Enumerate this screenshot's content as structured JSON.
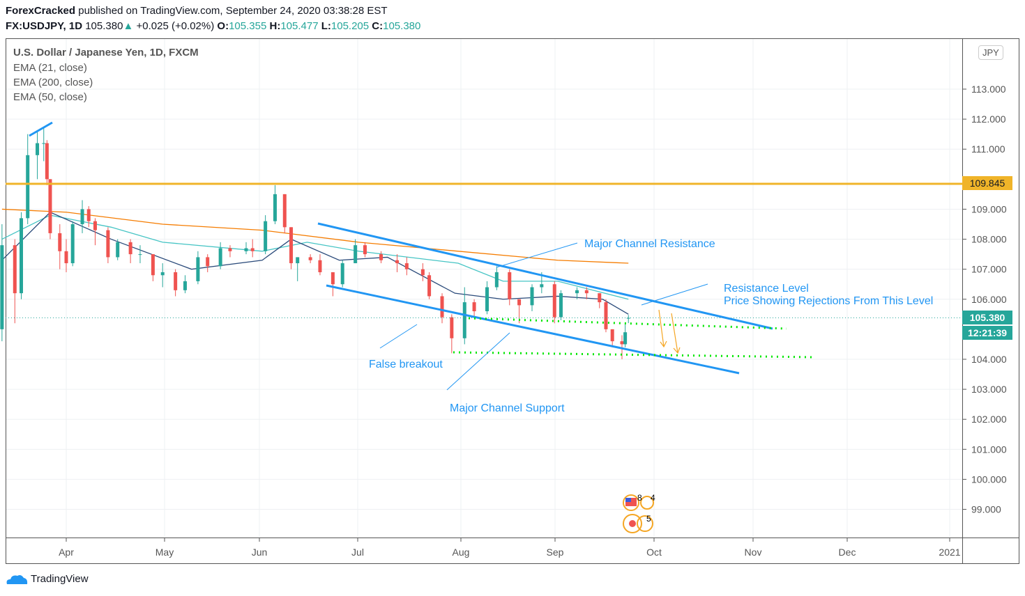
{
  "header": {
    "author": "ForexCracked",
    "published": "published on TradingView.com, September 24, 2020 03:38:28 EST",
    "symbol": "FX:USDJPY, 1D",
    "last": "105.380",
    "change": "+0.025 (+0.02%)",
    "o_label": "O:",
    "o": "105.355",
    "h_label": "H:",
    "h": "105.477",
    "l_label": "L:",
    "l": "105.205",
    "c_label": "C:",
    "c": "105.380"
  },
  "legend": {
    "title": "U.S. Dollar / Japanese Yen, 1D, FXCM",
    "ema1": "EMA (21, close)",
    "ema2": "EMA (200, close)",
    "ema3": "EMA (50, close)"
  },
  "currency_button": "JPY",
  "price_tags": {
    "resistance": "109.845",
    "last": "105.380",
    "countdown": "12:21:39"
  },
  "annotations": {
    "resistance": "Major Channel Resistance",
    "level1": "Resistance Level",
    "level2": "Price Showing  Rejections From This Level",
    "false_breakout": "False breakout",
    "support": "Major Channel Support"
  },
  "event_labels": [
    "8",
    "4",
    "5"
  ],
  "footer": {
    "brand": "TradingView"
  },
  "colors": {
    "up": "#26a69a",
    "down": "#ef5350",
    "ema21": "#2a4a7a",
    "ema50": "#45c4c4",
    "ema200": "#f57c00",
    "hline": "#f0b429",
    "trend": "#2196f3",
    "dots": "#00e600"
  },
  "chart_data": {
    "type": "candlestick",
    "y_ticks": [
      "113.000",
      "112.000",
      "111.000",
      "109.000",
      "108.000",
      "107.000",
      "106.000",
      "104.000",
      "103.000",
      "102.000",
      "101.000",
      "100.000",
      "99.000"
    ],
    "x_ticks": [
      "Apr",
      "May",
      "Jun",
      "Jul",
      "Aug",
      "Sep",
      "Oct",
      "Nov",
      "Dec",
      "2021"
    ],
    "ylim": [
      98.2,
      113.6
    ],
    "horizontal_line": 109.845,
    "candles": [
      [
        "2020-03-12",
        105.0,
        108.5,
        104.6,
        107.8
      ],
      [
        "2020-03-16",
        107.8,
        108.0,
        105.2,
        106.2
      ],
      [
        "2020-03-18",
        106.2,
        108.9,
        106.0,
        108.7
      ],
      [
        "2020-03-20",
        108.7,
        111.5,
        108.5,
        110.8
      ],
      [
        "2020-03-23",
        110.8,
        111.6,
        110.0,
        111.2
      ],
      [
        "2020-03-25",
        111.2,
        111.7,
        110.6,
        111.2
      ],
      [
        "2020-03-26",
        111.2,
        111.3,
        109.8,
        110.0
      ],
      [
        "2020-03-27",
        110.0,
        110.0,
        108.0,
        108.2
      ],
      [
        "2020-03-30",
        108.2,
        108.5,
        107.0,
        107.6
      ],
      [
        "2020-04-01",
        107.6,
        108.0,
        106.9,
        107.2
      ],
      [
        "2020-04-03",
        107.2,
        108.6,
        107.1,
        108.5
      ],
      [
        "2020-04-06",
        108.5,
        109.3,
        108.2,
        109.0
      ],
      [
        "2020-04-08",
        109.0,
        109.1,
        108.4,
        108.6
      ],
      [
        "2020-04-10",
        108.6,
        108.7,
        107.8,
        108.3
      ],
      [
        "2020-04-14",
        108.3,
        108.4,
        107.2,
        107.4
      ],
      [
        "2020-04-17",
        107.4,
        108.0,
        107.3,
        107.9
      ],
      [
        "2020-04-21",
        107.9,
        108.0,
        107.2,
        107.5
      ],
      [
        "2020-04-24",
        107.5,
        107.8,
        107.2,
        107.5
      ],
      [
        "2020-04-28",
        107.5,
        107.5,
        106.6,
        106.8
      ],
      [
        "2020-05-01",
        106.8,
        107.2,
        106.4,
        106.9
      ],
      [
        "2020-05-05",
        106.9,
        107.0,
        106.1,
        106.3
      ],
      [
        "2020-05-08",
        106.3,
        106.8,
        106.2,
        106.6
      ],
      [
        "2020-05-12",
        106.6,
        107.6,
        106.5,
        107.4
      ],
      [
        "2020-05-15",
        107.4,
        107.5,
        106.9,
        107.1
      ],
      [
        "2020-05-19",
        107.1,
        107.9,
        107.0,
        107.7
      ],
      [
        "2020-05-22",
        107.7,
        107.8,
        107.4,
        107.6
      ],
      [
        "2020-05-27",
        107.6,
        107.9,
        107.5,
        107.7
      ],
      [
        "2020-05-29",
        107.7,
        108.0,
        107.4,
        107.6
      ],
      [
        "2020-06-02",
        107.6,
        108.8,
        107.5,
        108.6
      ],
      [
        "2020-06-05",
        108.6,
        109.8,
        108.5,
        109.5
      ],
      [
        "2020-06-08",
        109.5,
        109.5,
        108.2,
        108.4
      ],
      [
        "2020-06-10",
        108.4,
        108.4,
        107.0,
        107.2
      ],
      [
        "2020-06-12",
        107.2,
        107.4,
        106.6,
        107.4
      ],
      [
        "2020-06-16",
        107.4,
        107.5,
        107.2,
        107.3
      ],
      [
        "2020-06-19",
        107.3,
        107.5,
        106.8,
        106.9
      ],
      [
        "2020-06-23",
        106.9,
        106.9,
        106.1,
        106.5
      ],
      [
        "2020-06-26",
        106.5,
        107.3,
        106.4,
        107.2
      ],
      [
        "2020-06-30",
        107.2,
        108.0,
        107.2,
        107.8
      ],
      [
        "2020-07-03",
        107.8,
        107.9,
        107.4,
        107.5
      ],
      [
        "2020-07-08",
        107.5,
        107.6,
        107.2,
        107.3
      ],
      [
        "2020-07-13",
        107.3,
        107.5,
        106.9,
        107.2
      ],
      [
        "2020-07-16",
        107.2,
        107.4,
        106.8,
        107.0
      ],
      [
        "2020-07-21",
        107.0,
        107.2,
        106.6,
        106.8
      ],
      [
        "2020-07-23",
        106.8,
        106.9,
        106.0,
        106.1
      ],
      [
        "2020-07-27",
        106.1,
        106.2,
        105.2,
        105.4
      ],
      [
        "2020-07-30",
        105.4,
        105.5,
        104.2,
        104.7
      ],
      [
        "2020-08-03",
        104.7,
        106.4,
        104.5,
        105.9
      ],
      [
        "2020-08-06",
        105.9,
        106.0,
        105.4,
        105.6
      ],
      [
        "2020-08-10",
        105.6,
        106.6,
        105.5,
        106.4
      ],
      [
        "2020-08-13",
        106.4,
        107.1,
        106.3,
        106.9
      ],
      [
        "2020-08-17",
        106.9,
        107.0,
        105.8,
        106.0
      ],
      [
        "2020-08-20",
        106.0,
        106.0,
        105.2,
        105.8
      ],
      [
        "2020-08-24",
        105.8,
        106.5,
        105.6,
        106.4
      ],
      [
        "2020-08-27",
        106.4,
        106.9,
        106.2,
        106.5
      ],
      [
        "2020-08-31",
        106.5,
        106.6,
        105.2,
        105.4
      ],
      [
        "2020-09-02",
        105.4,
        106.3,
        105.3,
        106.2
      ],
      [
        "2020-09-07",
        106.2,
        106.4,
        106.0,
        106.3
      ],
      [
        "2020-09-10",
        106.3,
        106.4,
        106.0,
        106.2
      ],
      [
        "2020-09-14",
        106.2,
        106.2,
        105.7,
        105.9
      ],
      [
        "2020-09-16",
        105.9,
        106.0,
        104.9,
        105.0
      ],
      [
        "2020-09-18",
        105.0,
        105.0,
        104.4,
        104.6
      ],
      [
        "2020-09-21",
        104.6,
        104.8,
        104.0,
        104.5
      ],
      [
        "2020-09-22",
        104.5,
        105.2,
        104.4,
        104.9
      ],
      [
        "2020-09-23",
        105.355,
        105.477,
        105.205,
        105.38
      ]
    ],
    "ema21": [
      [
        "2020-03-12",
        107.3
      ],
      [
        "2020-03-27",
        108.9
      ],
      [
        "2020-04-15",
        108.0
      ],
      [
        "2020-05-10",
        107.0
      ],
      [
        "2020-06-01",
        107.3
      ],
      [
        "2020-06-10",
        108.0
      ],
      [
        "2020-06-25",
        107.3
      ],
      [
        "2020-07-10",
        107.4
      ],
      [
        "2020-07-31",
        106.2
      ],
      [
        "2020-08-15",
        106.0
      ],
      [
        "2020-09-01",
        106.1
      ],
      [
        "2020-09-15",
        106.0
      ],
      [
        "2020-09-23",
        105.5
      ]
    ],
    "ema50": [
      [
        "2020-03-12",
        108.0
      ],
      [
        "2020-03-27",
        108.8
      ],
      [
        "2020-04-15",
        108.4
      ],
      [
        "2020-05-01",
        107.9
      ],
      [
        "2020-06-01",
        107.6
      ],
      [
        "2020-06-15",
        107.9
      ],
      [
        "2020-07-01",
        107.6
      ],
      [
        "2020-08-01",
        107.2
      ],
      [
        "2020-08-15",
        106.6
      ],
      [
        "2020-09-01",
        106.6
      ],
      [
        "2020-09-23",
        106.0
      ]
    ],
    "ema200": [
      [
        "2020-03-12",
        109.0
      ],
      [
        "2020-04-01",
        108.9
      ],
      [
        "2020-05-01",
        108.5
      ],
      [
        "2020-06-01",
        108.3
      ],
      [
        "2020-07-01",
        107.9
      ],
      [
        "2020-08-01",
        107.6
      ],
      [
        "2020-09-01",
        107.3
      ],
      [
        "2020-09-23",
        107.2
      ]
    ]
  }
}
